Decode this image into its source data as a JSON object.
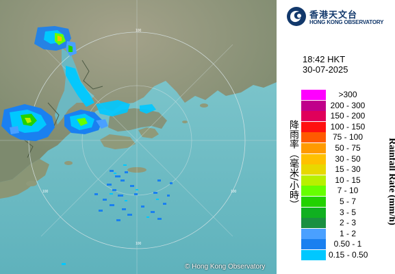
{
  "header": {
    "org_name_cn": "香港天文台",
    "org_name_en": "HONG KONG OBSERVATORY",
    "logo_icon": "hko-swirl-logo-icon"
  },
  "timestamp": {
    "time": "18:42 HKT",
    "date": "30-07-2025"
  },
  "map": {
    "type": "radar-rainfall-map",
    "copyright": "© Hong Kong Observatory",
    "range_ring_labels": [
      "100",
      "100",
      "100",
      "100"
    ]
  },
  "legend": {
    "title_cn": "降雨率（毫米/小時）",
    "title_en": "Rainfall Rate (mm/h)",
    "items": [
      {
        "label": ">300",
        "color": "#ff00ff"
      },
      {
        "label": "200 - 300",
        "color": "#c0008a"
      },
      {
        "label": "150 - 200",
        "color": "#e0005a"
      },
      {
        "label": "100 - 150",
        "color": "#ff1010"
      },
      {
        "label": "75 - 100",
        "color": "#ff5a00"
      },
      {
        "label": "50 - 75",
        "color": "#ff9a00"
      },
      {
        "label": "30 - 50",
        "color": "#ffc000"
      },
      {
        "label": "15 - 30",
        "color": "#e8d800"
      },
      {
        "label": "10 - 15",
        "color": "#b8f000"
      },
      {
        "label": "7 - 10",
        "color": "#66ff00"
      },
      {
        "label": "5 - 7",
        "color": "#22d200"
      },
      {
        "label": "3 - 5",
        "color": "#10b020"
      },
      {
        "label": "2 - 3",
        "color": "#1a9040"
      },
      {
        "label": "1 - 2",
        "color": "#4aa0ff"
      },
      {
        "label": "0.50 - 1",
        "color": "#1a80f0"
      },
      {
        "label": "0.15 - 0.50",
        "color": "#00c8ff"
      }
    ]
  }
}
